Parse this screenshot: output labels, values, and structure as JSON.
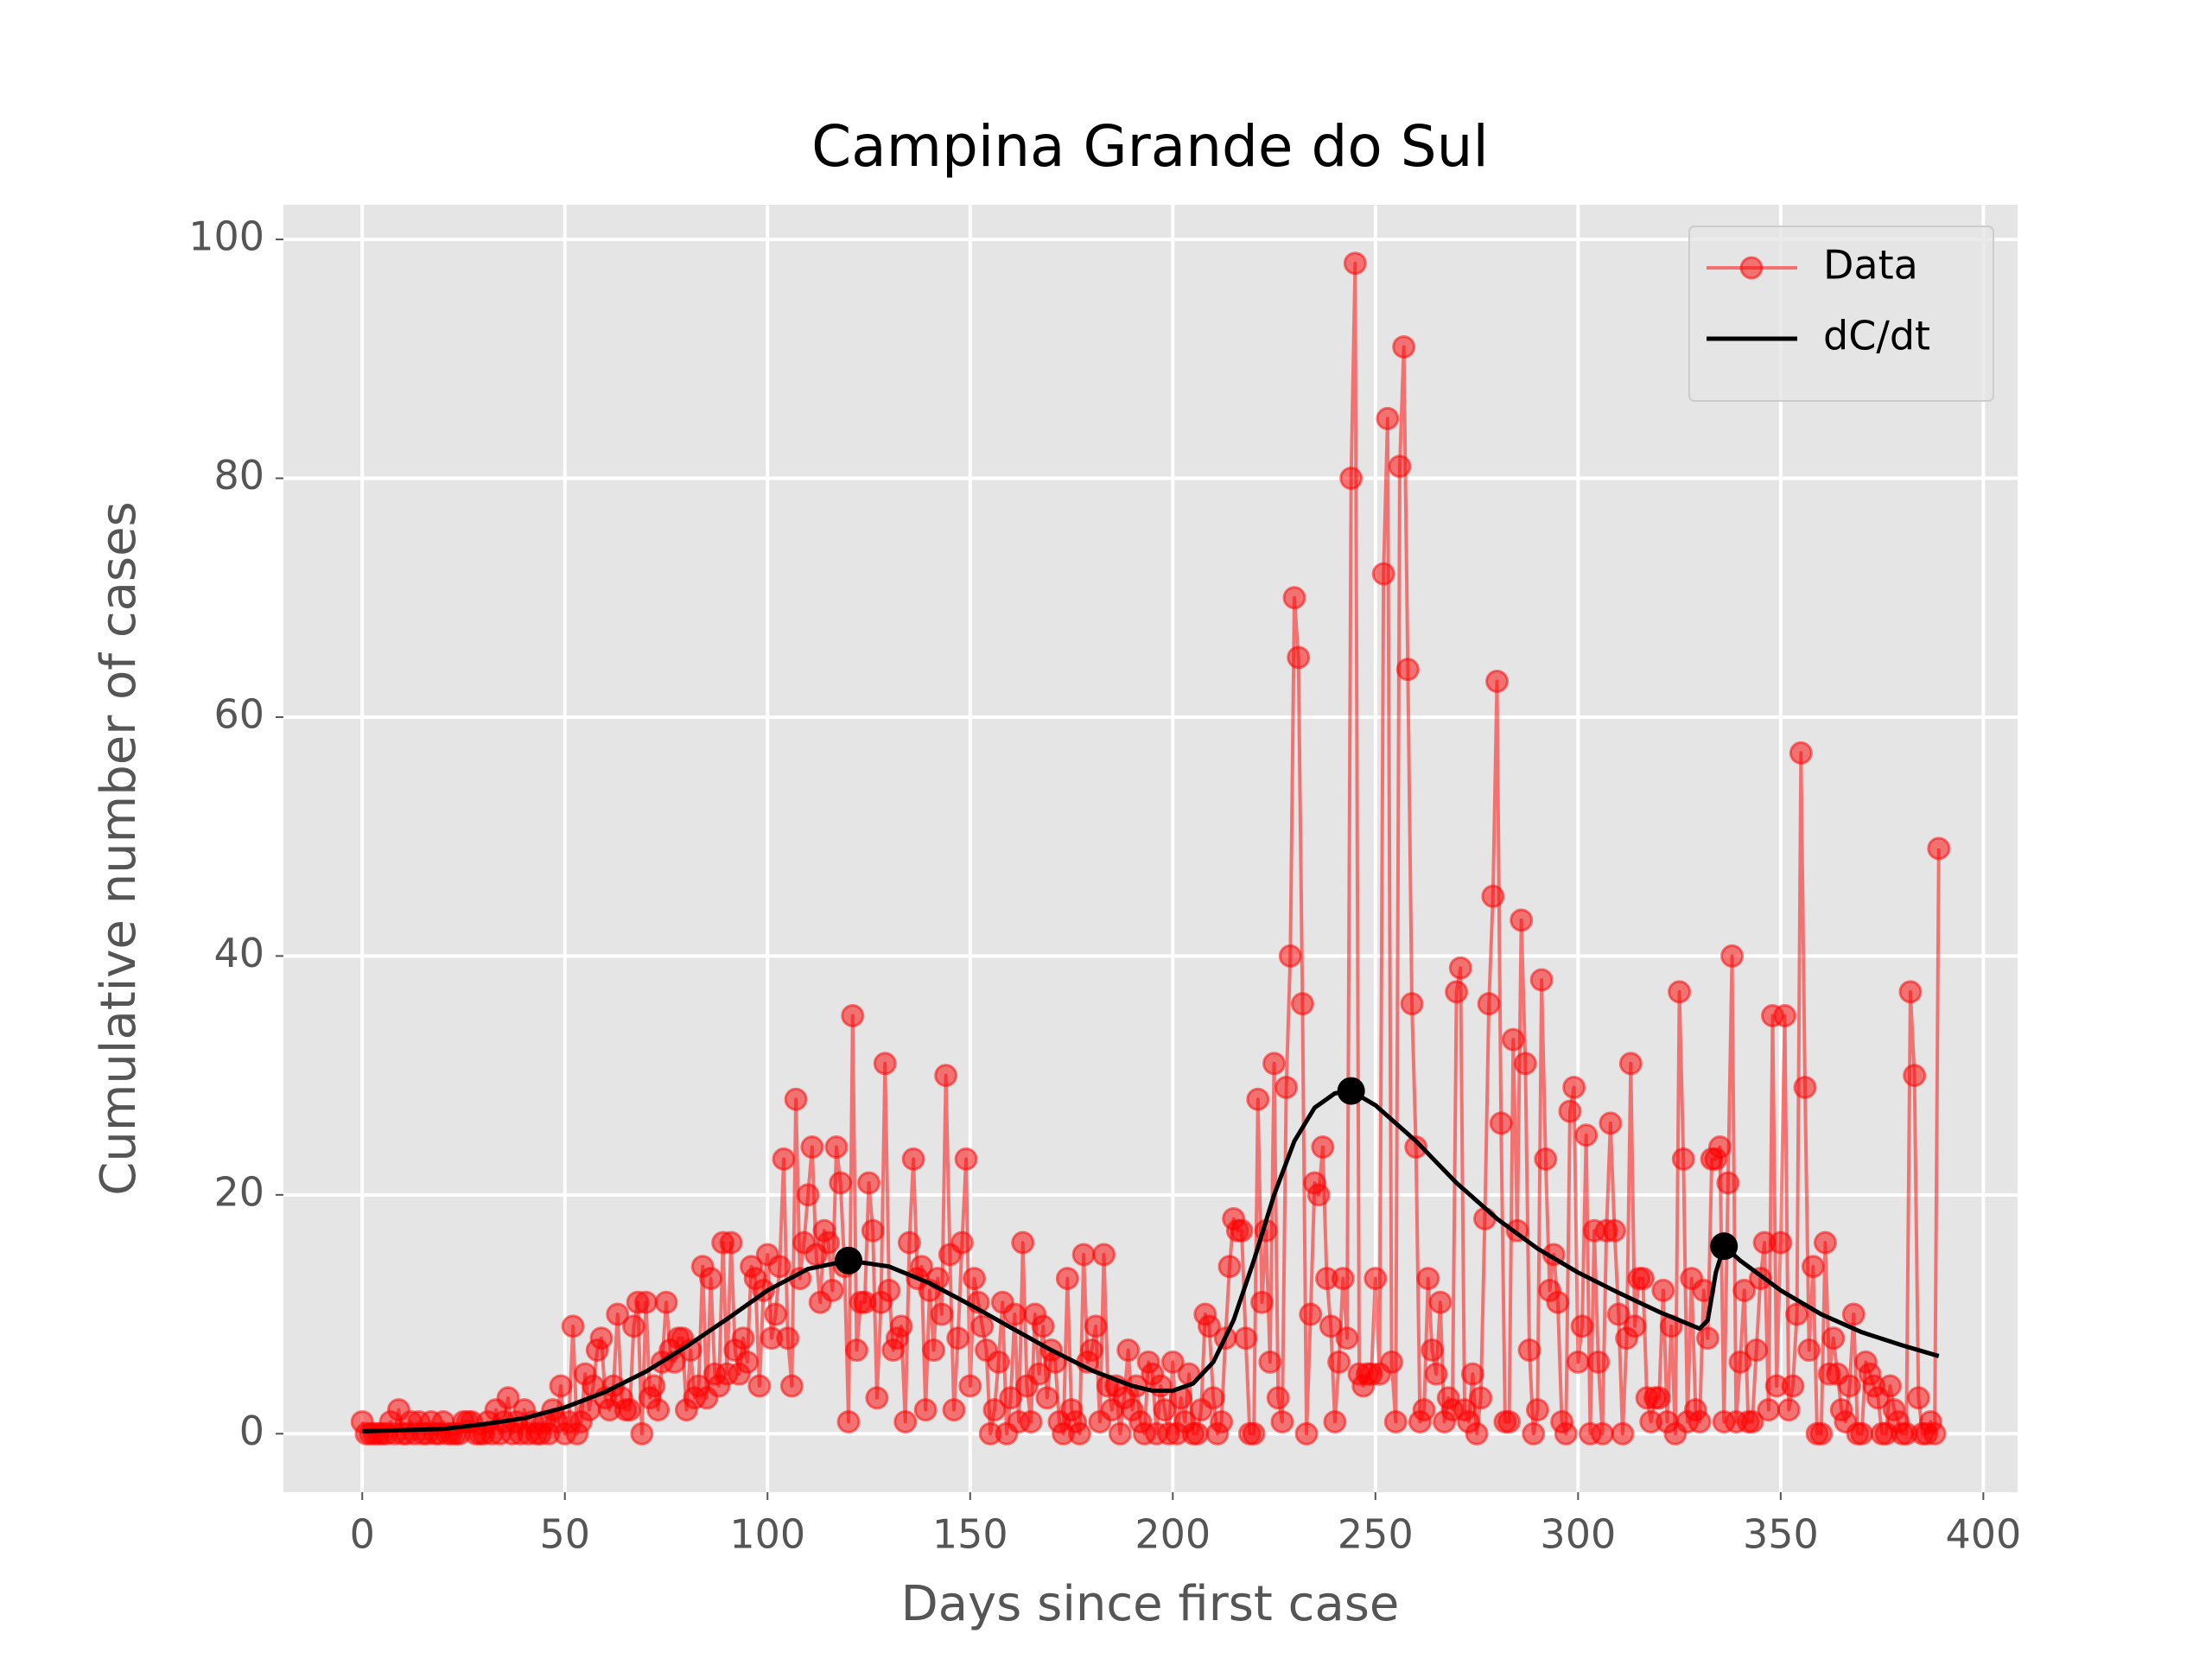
{
  "chart_data": {
    "type": "line",
    "title": "Campina Grande do Sul",
    "xlabel": "Days since first case",
    "ylabel": "Cumulative number of cases",
    "xlim": [
      -19.45,
      408.45
    ],
    "ylim": [
      -4.9,
      102.9
    ],
    "xticks": [
      0,
      50,
      100,
      150,
      200,
      250,
      300,
      350,
      400
    ],
    "yticks": [
      0,
      20,
      40,
      60,
      80,
      100
    ],
    "grid": true,
    "legend": "upper right",
    "series": [
      {
        "name": "Data",
        "color": "#ff0000",
        "marker": true,
        "x": [
          0,
          1,
          2,
          3,
          4,
          5,
          6,
          7,
          8,
          9,
          10,
          11,
          12,
          13,
          14,
          15,
          16,
          17,
          18,
          19,
          20,
          21,
          22,
          23,
          24,
          25,
          26,
          27,
          28,
          29,
          30,
          31,
          32,
          33,
          34,
          35,
          36,
          37,
          38,
          39,
          40,
          41,
          42,
          43,
          44,
          45,
          46,
          47,
          48,
          49,
          50,
          51,
          52,
          53,
          54,
          55,
          56,
          57,
          58,
          59,
          60,
          61,
          62,
          63,
          64,
          65,
          66,
          67,
          68,
          69,
          70,
          71,
          72,
          73,
          74,
          75,
          76,
          77,
          78,
          79,
          80,
          81,
          82,
          83,
          84,
          85,
          86,
          87,
          88,
          89,
          90,
          91,
          92,
          93,
          94,
          95,
          96,
          97,
          98,
          99,
          100,
          101,
          102,
          103,
          104,
          105,
          106,
          107,
          108,
          109,
          110,
          111,
          112,
          113,
          114,
          115,
          116,
          117,
          118,
          119,
          120,
          121,
          122,
          123,
          124,
          125,
          126,
          127,
          128,
          129,
          130,
          131,
          132,
          133,
          134,
          135,
          136,
          137,
          138,
          139,
          140,
          141,
          142,
          143,
          144,
          145,
          146,
          147,
          148,
          149,
          150,
          151,
          152,
          153,
          154,
          155,
          156,
          157,
          158,
          159,
          160,
          161,
          162,
          163,
          164,
          165,
          166,
          167,
          168,
          169,
          170,
          171,
          172,
          173,
          174,
          175,
          176,
          177,
          178,
          179,
          180,
          181,
          182,
          183,
          184,
          185,
          186,
          187,
          188,
          189,
          190,
          191,
          192,
          193,
          194,
          195,
          196,
          197,
          198,
          199,
          200,
          201,
          202,
          203,
          204,
          205,
          206,
          207,
          208,
          209,
          210,
          211,
          212,
          213,
          214,
          215,
          216,
          217,
          218,
          219,
          220,
          221,
          222,
          223,
          224,
          225,
          226,
          227,
          228,
          229,
          230,
          231,
          232,
          233,
          234,
          235,
          236,
          237,
          238,
          239,
          240,
          241,
          242,
          243,
          244,
          245,
          246,
          247,
          248,
          249,
          250,
          251,
          252,
          253,
          254,
          255,
          256,
          257,
          258,
          259,
          260,
          261,
          262,
          263,
          264,
          265,
          266,
          267,
          268,
          269,
          270,
          271,
          272,
          273,
          274,
          275,
          276,
          277,
          278,
          279,
          280,
          281,
          282,
          283,
          284,
          285,
          286,
          287,
          288,
          289,
          290,
          291,
          292,
          293,
          294,
          295,
          296,
          297,
          298,
          299,
          300,
          301,
          302,
          303,
          304,
          305,
          306,
          307,
          308,
          309,
          310,
          311,
          312,
          313,
          314,
          315,
          316,
          317,
          318,
          319,
          320,
          321,
          322,
          323,
          324,
          325,
          326,
          327,
          328,
          329,
          330,
          331,
          332,
          333,
          334,
          335,
          336,
          337,
          338,
          339,
          340,
          341,
          342,
          343,
          344,
          345,
          346,
          347,
          348,
          349,
          350,
          351,
          352,
          353,
          354,
          355,
          356,
          357,
          358,
          359,
          360,
          361,
          362,
          363,
          364,
          365,
          366,
          367,
          368,
          369,
          370,
          371,
          372,
          373,
          374,
          375,
          376,
          377,
          378,
          379,
          380,
          381,
          382,
          383,
          384,
          385,
          386,
          387,
          388,
          389
        ],
        "values": [
          1,
          0,
          0,
          0,
          0,
          0,
          0,
          1,
          0,
          2,
          0,
          0,
          1,
          0,
          1,
          0,
          0,
          1,
          0,
          0,
          1,
          0,
          0,
          0,
          0,
          1,
          1,
          1,
          0,
          0,
          0,
          1,
          0,
          2,
          0,
          1,
          3,
          0,
          1,
          0,
          2,
          0,
          1,
          0,
          0,
          1,
          0,
          2,
          1,
          4,
          0,
          1,
          9,
          0,
          1,
          5,
          2,
          4,
          7,
          8,
          3,
          2,
          4,
          10,
          3,
          2,
          2,
          9,
          11,
          0,
          11,
          3,
          4,
          2,
          6,
          11,
          7,
          6,
          8,
          8,
          2,
          7,
          3,
          4,
          14,
          3,
          13,
          5,
          4,
          16,
          5,
          16,
          7,
          5,
          8,
          6,
          14,
          13,
          4,
          12,
          15,
          8,
          10,
          14,
          23,
          8,
          4,
          28,
          13,
          16,
          20,
          24,
          15,
          11,
          17,
          16,
          12,
          24,
          21,
          14,
          1,
          35,
          7,
          11,
          11,
          21,
          17,
          3,
          11,
          31,
          12,
          7,
          8,
          9,
          1,
          16,
          23,
          13,
          14,
          2,
          12,
          7,
          13,
          10,
          30,
          15,
          2,
          8,
          16,
          23,
          4,
          13,
          11,
          9,
          7,
          0,
          2,
          6,
          11,
          0,
          3,
          10,
          1,
          16,
          4,
          1,
          10,
          5,
          9,
          3,
          7,
          6,
          1,
          0,
          13,
          2,
          1,
          0,
          15,
          6,
          7,
          9,
          1,
          15,
          4,
          2,
          4,
          0,
          3,
          7,
          2,
          4,
          1,
          0,
          6,
          5,
          0,
          4,
          2,
          0,
          6,
          0,
          3,
          1,
          5,
          0,
          0,
          2,
          10,
          9,
          3,
          0,
          1,
          8,
          14,
          18,
          17,
          17,
          8,
          0,
          0,
          28,
          11,
          17,
          6,
          31,
          3,
          1,
          29,
          40,
          70,
          65,
          36,
          0,
          10,
          21,
          20,
          24,
          13,
          9,
          1,
          6,
          13,
          8,
          80,
          98,
          5,
          4,
          5,
          5,
          13,
          5,
          72,
          85,
          6,
          1,
          81,
          91,
          64,
          36,
          24,
          1,
          2,
          13,
          7,
          5,
          11,
          1,
          3,
          2,
          37,
          39,
          2,
          1,
          5,
          0,
          3,
          18,
          36,
          45,
          63,
          26,
          1,
          1,
          33,
          17,
          43,
          31,
          7,
          0,
          2,
          38,
          23,
          12,
          15,
          11,
          1,
          0,
          27,
          29,
          6,
          9,
          25,
          0,
          17,
          6,
          0,
          17,
          26,
          17,
          10,
          0,
          8,
          31,
          9,
          13,
          13,
          3,
          1,
          3,
          3,
          12,
          1,
          9,
          0,
          37,
          23,
          1,
          13,
          2,
          1,
          12,
          8,
          23,
          23,
          24,
          1,
          21,
          40,
          1,
          6,
          12,
          1,
          1,
          7,
          13,
          16,
          2,
          35,
          4,
          16,
          35,
          2,
          4,
          10,
          57,
          29,
          7,
          14,
          0,
          0,
          16,
          5,
          8,
          5,
          2,
          1,
          4,
          10,
          0,
          0,
          6,
          5,
          4,
          3,
          0,
          0,
          4,
          2,
          1,
          0,
          0,
          37,
          30,
          3,
          0,
          0,
          1,
          0,
          49
        ]
      },
      {
        "name": "dC/dt",
        "color": "#000000",
        "marker": false,
        "x": [
          0,
          10,
          20,
          30,
          40,
          50,
          60,
          70,
          80,
          90,
          100,
          110,
          120,
          130,
          140,
          150,
          160,
          170,
          180,
          190,
          195,
          200,
          205,
          210,
          215,
          220,
          225,
          230,
          235,
          240,
          244,
          250,
          260,
          270,
          280,
          290,
          300,
          310,
          320,
          330,
          332,
          334,
          336,
          340,
          350,
          360,
          370,
          380,
          389
        ],
        "values": [
          0.2,
          0.3,
          0.4,
          0.8,
          1.3,
          2.2,
          3.5,
          5.2,
          7.3,
          9.6,
          12,
          13.8,
          14.5,
          14,
          12.6,
          10.8,
          8.9,
          7,
          5.3,
          4,
          3.6,
          3.6,
          4.2,
          6,
          9.5,
          14.5,
          20,
          24.5,
          27.3,
          28.5,
          28.7,
          27.5,
          24.5,
          21,
          18,
          15.5,
          13.5,
          11.8,
          10.2,
          8.8,
          9.5,
          13.5,
          15.7,
          14.5,
          12,
          10,
          8.5,
          7.4,
          6.5
        ]
      }
    ],
    "peaks": {
      "color": "#000000",
      "x": [
        120,
        244,
        336
      ],
      "values": [
        14.5,
        28.7,
        15.7
      ]
    }
  }
}
